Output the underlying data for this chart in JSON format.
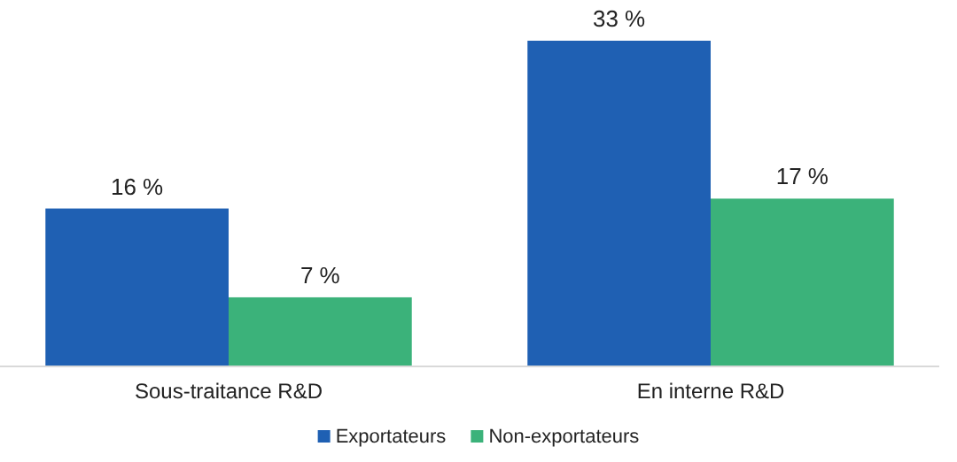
{
  "chart_data": {
    "type": "bar",
    "categories": [
      "Sous-traitance R&D",
      "En interne R&D"
    ],
    "series": [
      {
        "name": "Exportateurs",
        "color": "#1f60b3",
        "values": [
          16,
          33
        ],
        "value_labels": [
          "16 %",
          "33 %"
        ]
      },
      {
        "name": "Non-exportateurs",
        "color": "#3bb27a",
        "values": [
          7,
          17
        ],
        "value_labels": [
          "7 %",
          "17 %"
        ]
      }
    ],
    "legend": "bottom"
  }
}
